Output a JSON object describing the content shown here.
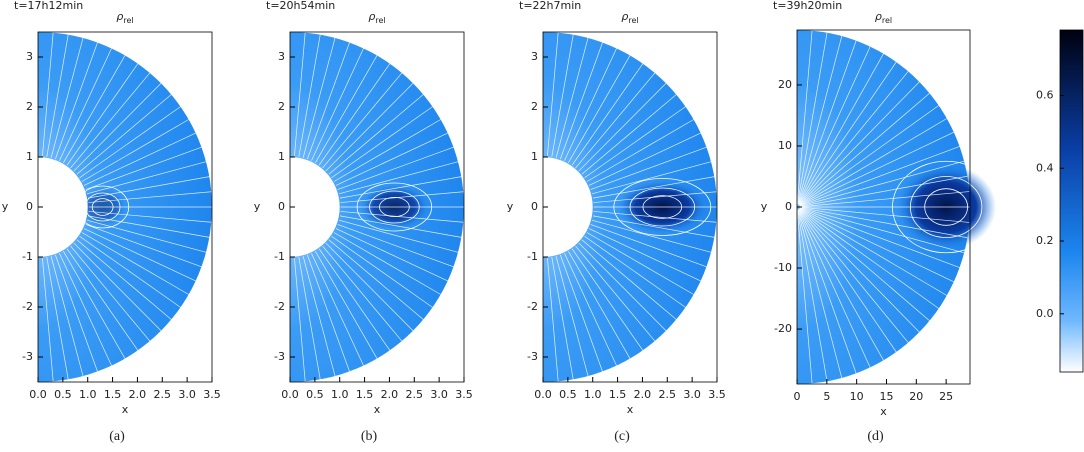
{
  "chart_data": [
    {
      "type": "contour",
      "title": "t=17h12min",
      "variable": "ρ",
      "variable_subscript": "rel",
      "xlabel": "x",
      "ylabel": "y",
      "caption": "(a)",
      "xlim": [
        0,
        3.5
      ],
      "ylim": [
        -3.5,
        3.5
      ],
      "xticks": [
        {
          "value": 0,
          "label": "0.0"
        },
        {
          "value": 0.5,
          "label": "0.5"
        },
        {
          "value": 1,
          "label": "1.0"
        },
        {
          "value": 1.5,
          "label": "1.5"
        },
        {
          "value": 2,
          "label": "2.0"
        },
        {
          "value": 2.5,
          "label": "2.5"
        },
        {
          "value": 3,
          "label": "3.0"
        },
        {
          "value": 3.5,
          "label": "3.5"
        }
      ],
      "yticks": [
        -3,
        -2,
        -1,
        0,
        1,
        2,
        3
      ]
    },
    {
      "type": "contour",
      "title": "t=20h54min",
      "variable": "ρ",
      "variable_subscript": "rel",
      "xlabel": "x",
      "ylabel": "y",
      "caption": "(b)",
      "xlim": [
        0,
        3.5
      ],
      "ylim": [
        -3.5,
        3.5
      ],
      "xticks": [
        {
          "value": 0,
          "label": "0.0"
        },
        {
          "value": 0.5,
          "label": "0.5"
        },
        {
          "value": 1,
          "label": "1.0"
        },
        {
          "value": 1.5,
          "label": "1.5"
        },
        {
          "value": 2,
          "label": "2.0"
        },
        {
          "value": 2.5,
          "label": "2.5"
        },
        {
          "value": 3,
          "label": "3.0"
        },
        {
          "value": 3.5,
          "label": "3.5"
        }
      ],
      "yticks": [
        -3,
        -2,
        -1,
        0,
        1,
        2,
        3
      ]
    },
    {
      "type": "contour",
      "title": "t=22h7min",
      "variable": "ρ",
      "variable_subscript": "rel",
      "xlabel": "x",
      "ylabel": "y",
      "caption": "(c)",
      "xlim": [
        0,
        3.5
      ],
      "ylim": [
        -3.5,
        3.5
      ],
      "xticks": [
        {
          "value": 0,
          "label": "0.0"
        },
        {
          "value": 0.5,
          "label": "0.5"
        },
        {
          "value": 1,
          "label": "1.0"
        },
        {
          "value": 1.5,
          "label": "1.5"
        },
        {
          "value": 2,
          "label": "2.0"
        },
        {
          "value": 2.5,
          "label": "2.5"
        },
        {
          "value": 3,
          "label": "3.0"
        },
        {
          "value": 3.5,
          "label": "3.5"
        }
      ],
      "yticks": [
        -3,
        -2,
        -1,
        0,
        1,
        2,
        3
      ]
    },
    {
      "type": "contour",
      "title": "t=39h20min",
      "variable": "ρ",
      "variable_subscript": "rel",
      "xlabel": "x",
      "ylabel": "y",
      "caption": "(d)",
      "xlim": [
        0,
        29
      ],
      "ylim": [
        -29,
        29
      ],
      "xticks": [
        0,
        5,
        10,
        15,
        20,
        25
      ],
      "yticks": [
        -20,
        -10,
        0,
        10,
        20
      ]
    },
    {
      "type": "colorbar",
      "ylim": [
        -0.16,
        0.78
      ],
      "yticks": [
        {
          "value": 0,
          "label": "0.0"
        },
        {
          "value": 0.2,
          "label": "0.2"
        },
        {
          "value": 0.4,
          "label": "0.4"
        },
        {
          "value": 0.6,
          "label": "0.6"
        }
      ]
    }
  ]
}
